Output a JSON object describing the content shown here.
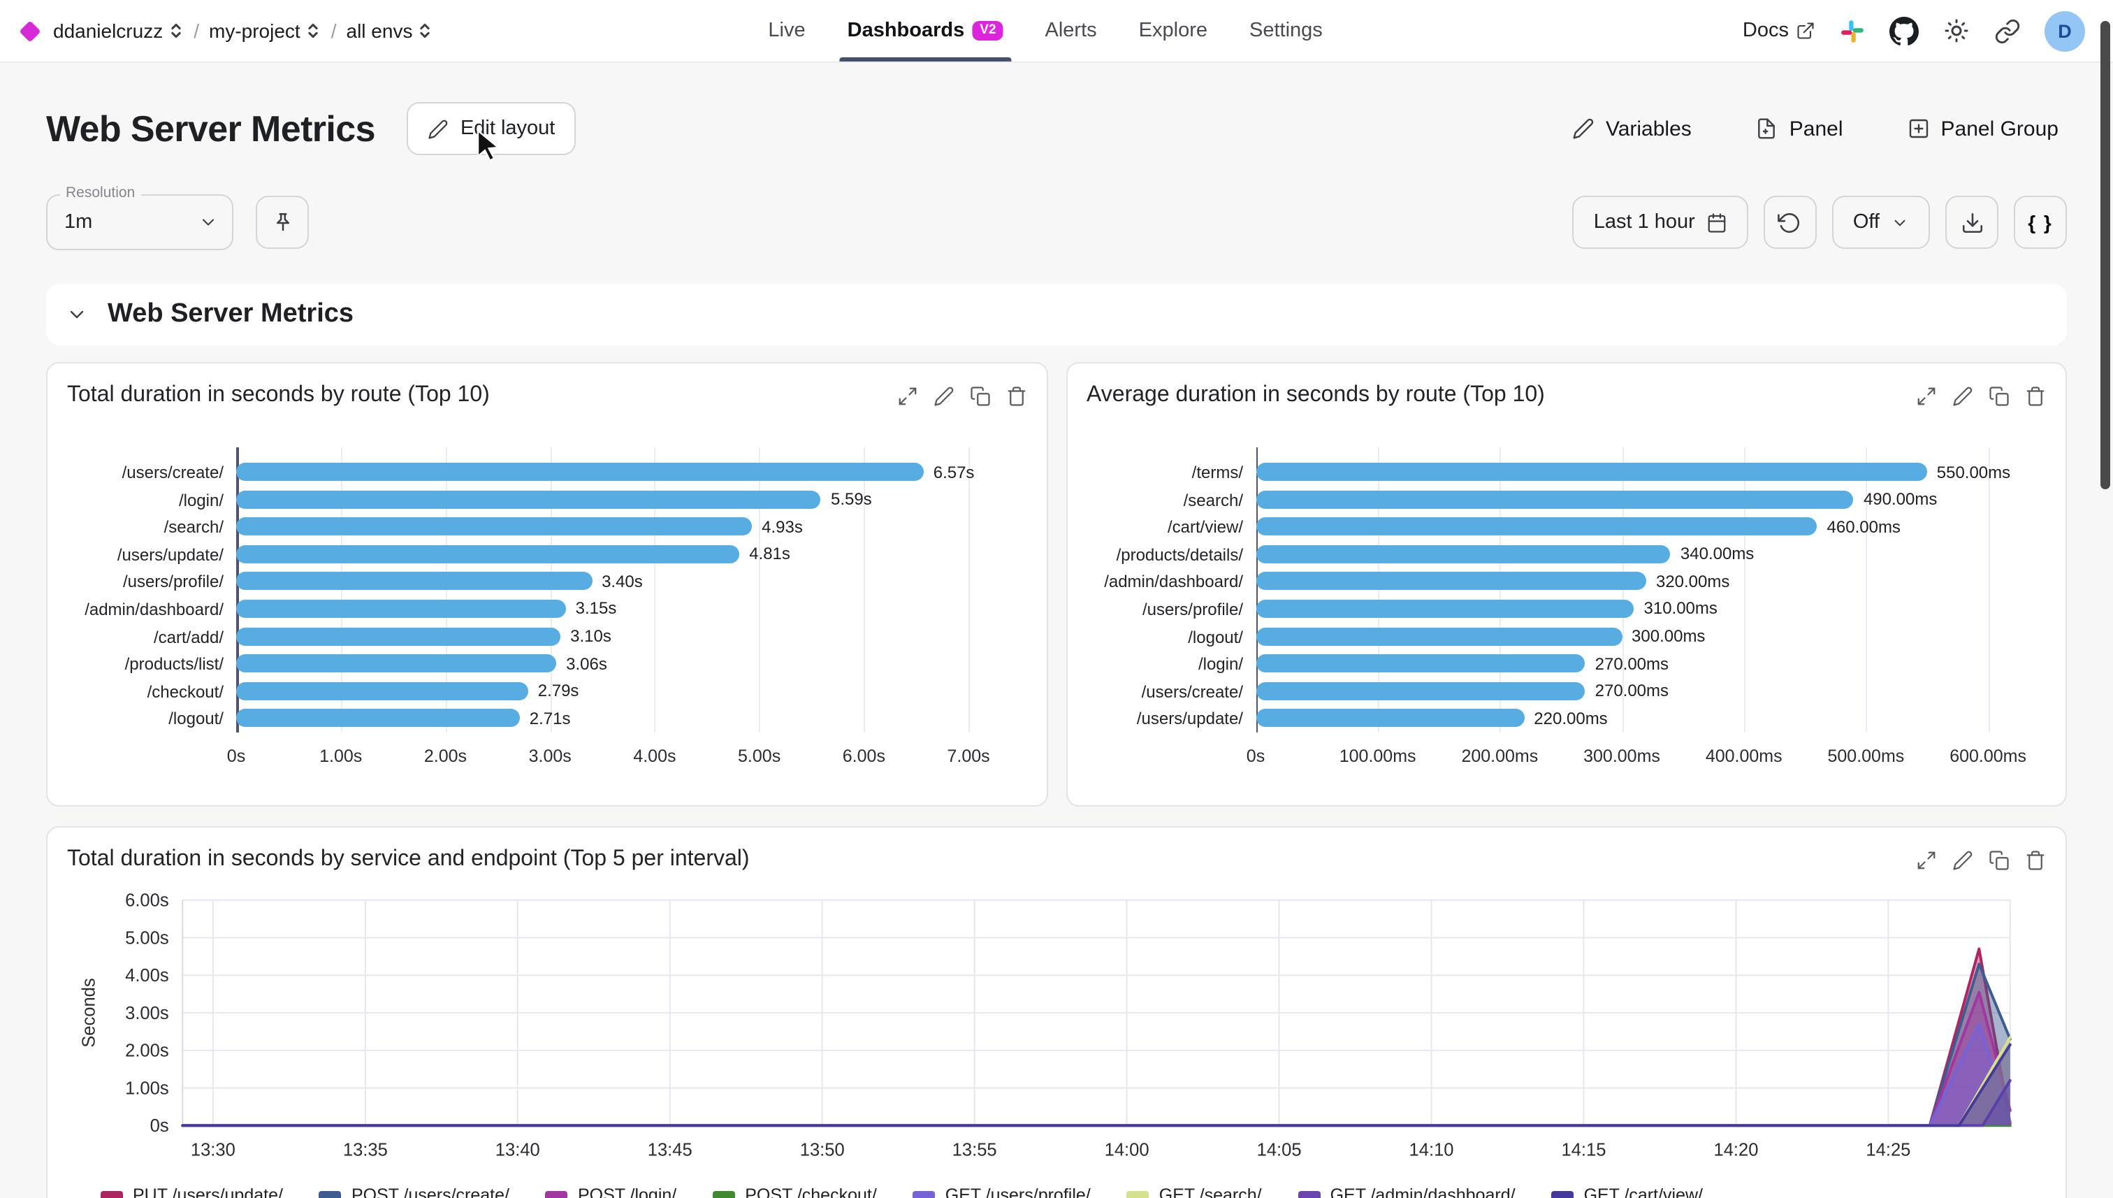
{
  "topbar": {
    "breadcrumbs": [
      {
        "label": "ddanielcruzz"
      },
      {
        "label": "my-project"
      },
      {
        "label": "all envs"
      }
    ],
    "nav": [
      {
        "label": "Live"
      },
      {
        "label": "Dashboards",
        "badge": "V2",
        "active": true
      },
      {
        "label": "Alerts"
      },
      {
        "label": "Explore"
      },
      {
        "label": "Settings"
      }
    ],
    "docs_label": "Docs",
    "avatar_initial": "D"
  },
  "header": {
    "title": "Web Server Metrics",
    "edit_button": "Edit layout",
    "actions": {
      "variables": "Variables",
      "panel": "Panel",
      "panel_group": "Panel Group"
    }
  },
  "controls": {
    "resolution_label": "Resolution",
    "resolution_value": "1m",
    "time_range": "Last 1 hour",
    "auto_refresh": "Off",
    "braces_label": "{ }"
  },
  "section": {
    "title": "Web Server Metrics"
  },
  "colors": {
    "accent_magenta": "#d829d8",
    "bar_blue": "#57ace2",
    "active_tab_underline": "#46506b",
    "grid": "#e6e6f0"
  },
  "chart_data": [
    {
      "type": "bar",
      "orientation": "horizontal",
      "title": "Total duration in seconds by route (Top 10)",
      "categories": [
        "/users/create/",
        "/login/",
        "/search/",
        "/users/update/",
        "/users/profile/",
        "/admin/dashboard/",
        "/cart/add/",
        "/products/list/",
        "/checkout/",
        "/logout/"
      ],
      "values": [
        6.57,
        5.59,
        4.93,
        4.81,
        3.4,
        3.15,
        3.1,
        3.06,
        2.79,
        2.71
      ],
      "value_labels": [
        "6.57s",
        "5.59s",
        "4.93s",
        "4.81s",
        "3.40s",
        "3.15s",
        "3.10s",
        "3.06s",
        "2.79s",
        "2.71s"
      ],
      "x_ticks": [
        "0s",
        "1.00s",
        "2.00s",
        "3.00s",
        "4.00s",
        "5.00s",
        "6.00s",
        "7.00s"
      ],
      "axis_max": 7,
      "bar_color": "#57ace2"
    },
    {
      "type": "bar",
      "orientation": "horizontal",
      "title": "Average duration in seconds by route (Top 10)",
      "categories": [
        "/terms/",
        "/search/",
        "/cart/view/",
        "/products/details/",
        "/admin/dashboard/",
        "/users/profile/",
        "/logout/",
        "/login/",
        "/users/create/",
        "/users/update/"
      ],
      "values": [
        550,
        490,
        460,
        340,
        320,
        310,
        300,
        270,
        270,
        220
      ],
      "value_labels": [
        "550.00ms",
        "490.00ms",
        "460.00ms",
        "340.00ms",
        "320.00ms",
        "310.00ms",
        "300.00ms",
        "270.00ms",
        "270.00ms",
        "220.00ms"
      ],
      "x_ticks": [
        "0s",
        "100.00ms",
        "200.00ms",
        "300.00ms",
        "400.00ms",
        "500.00ms",
        "600.00ms"
      ],
      "axis_max": 600,
      "bar_color": "#57ace2"
    },
    {
      "type": "area",
      "title": "Total duration in seconds by service and endpoint (Top 5 per interval)",
      "ylabel": "Seconds",
      "y_ticks": [
        "6.00s",
        "5.00s",
        "4.00s",
        "3.00s",
        "2.00s",
        "1.00s",
        "0s"
      ],
      "y_max": 6,
      "x_ticks": [
        "13:30",
        "13:35",
        "13:40",
        "13:45",
        "13:50",
        "13:55",
        "14:00",
        "14:05",
        "14:10",
        "14:15",
        "14:20",
        "14:25"
      ],
      "x_range_minutes": 60,
      "x_tick_start_minute": 1,
      "x_tick_step_minutes": 5,
      "series": [
        {
          "name": "PUT /users/update/",
          "color": "#ad2561",
          "points": [
            [
              0,
              0
            ],
            [
              0.956,
              0
            ],
            [
              0.983,
              4.7
            ],
            [
              1,
              0.05
            ]
          ]
        },
        {
          "name": "POST /users/create/",
          "color": "#3e5c8f",
          "points": [
            [
              0,
              0
            ],
            [
              0.956,
              0
            ],
            [
              0.983,
              4.3
            ],
            [
              1,
              2.3
            ]
          ]
        },
        {
          "name": "POST /login/",
          "color": "#a137a1",
          "points": [
            [
              0,
              0
            ],
            [
              0.956,
              0
            ],
            [
              0.983,
              3.55
            ],
            [
              1,
              0.4
            ]
          ]
        },
        {
          "name": "POST /checkout/",
          "color": "#3f8a2e",
          "points": [
            [
              0,
              0
            ],
            [
              1,
              0
            ]
          ]
        },
        {
          "name": "GET /users/profile/",
          "color": "#7663d8",
          "points": [
            [
              0,
              0
            ],
            [
              0.956,
              0
            ],
            [
              0.983,
              2.7
            ],
            [
              1,
              0.1
            ]
          ]
        },
        {
          "name": "GET /search/",
          "color": "#d6e18d",
          "points": [
            [
              0,
              0
            ],
            [
              0.972,
              0
            ],
            [
              1,
              2.35
            ]
          ]
        },
        {
          "name": "GET /admin/dashboard/",
          "color": "#6b46b3",
          "points": [
            [
              0,
              0
            ],
            [
              0.985,
              0
            ],
            [
              1,
              1.2
            ]
          ]
        },
        {
          "name": "GET /cart/view/",
          "color": "#45399b",
          "points": [
            [
              0,
              0
            ],
            [
              0.972,
              0
            ],
            [
              1,
              2.15
            ]
          ]
        }
      ]
    }
  ]
}
